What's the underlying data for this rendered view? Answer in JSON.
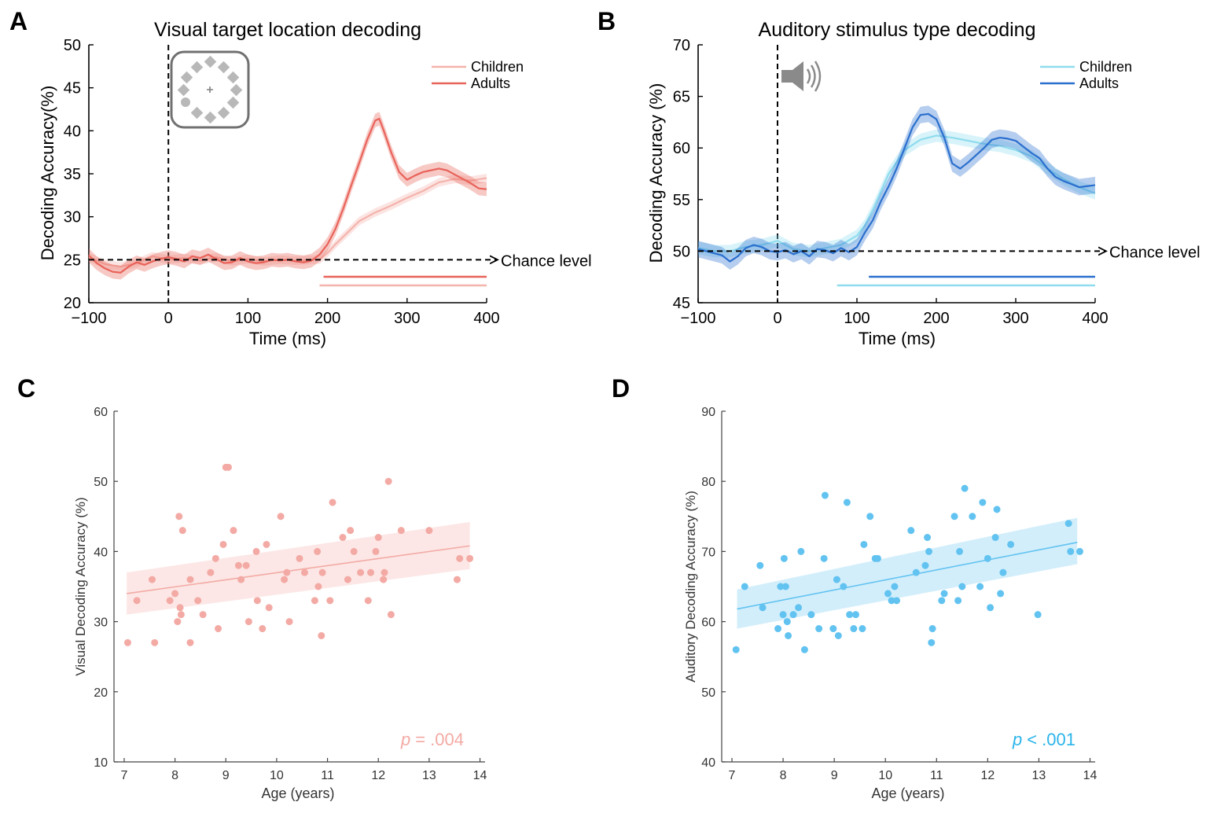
{
  "chart_data": [
    {
      "panel_label": "A",
      "type": "line",
      "title": "Visual target location decoding",
      "xlabel": "Time (ms)",
      "ylabel": "Decoding Accuracy(%)",
      "xlim": [
        -100,
        400
      ],
      "ylim": [
        20,
        50
      ],
      "xticks": [
        "−100",
        "0",
        "100",
        "200",
        "300",
        "400"
      ],
      "yticks": [
        "20",
        "25",
        "30",
        "35",
        "40",
        "45",
        "50"
      ],
      "chance_level": 25,
      "chance_label": "Chance level",
      "stimulus_icon": "visual-target-array-icon",
      "legend_position": "top-right",
      "series": [
        {
          "name": "Children",
          "color": "#f4b3ab",
          "x": [
            -100,
            -80,
            -60,
            -40,
            -20,
            0,
            20,
            40,
            60,
            80,
            100,
            120,
            140,
            160,
            180,
            190,
            200,
            210,
            220,
            230,
            240,
            260,
            280,
            300,
            320,
            340,
            360,
            380,
            400
          ],
          "values": [
            25.3,
            24.5,
            24.2,
            24.6,
            25.4,
            25.0,
            25.2,
            24.9,
            25.3,
            24.8,
            25.1,
            24.8,
            25.0,
            24.9,
            25.0,
            25.0,
            25.8,
            26.8,
            27.7,
            28.6,
            29.5,
            30.5,
            31.3,
            32.2,
            33.0,
            34.0,
            34.4,
            34.2,
            34.5
          ],
          "ci": 0.5,
          "significance_start": 190,
          "significance_end": 400
        },
        {
          "name": "Adults",
          "color": "#e8635a",
          "x": [
            -100,
            -90,
            -80,
            -70,
            -60,
            -50,
            -40,
            -30,
            -20,
            -10,
            0,
            10,
            20,
            30,
            40,
            50,
            60,
            70,
            80,
            90,
            100,
            110,
            120,
            130,
            140,
            150,
            160,
            170,
            180,
            190,
            200,
            210,
            220,
            230,
            240,
            250,
            260,
            265,
            270,
            280,
            290,
            300,
            310,
            320,
            330,
            340,
            350,
            360,
            370,
            380,
            390,
            400
          ],
          "values": [
            25.5,
            24.6,
            24.0,
            23.6,
            23.5,
            24.2,
            24.7,
            24.4,
            24.8,
            25.1,
            25.3,
            25.1,
            24.8,
            25.4,
            25.2,
            25.6,
            25.1,
            24.6,
            24.7,
            25.2,
            24.8,
            24.6,
            24.7,
            25.0,
            24.9,
            25.0,
            24.8,
            24.7,
            24.9,
            25.6,
            26.8,
            28.6,
            31.0,
            33.7,
            36.3,
            39.0,
            41.2,
            41.4,
            40.2,
            37.5,
            35.2,
            34.3,
            34.8,
            35.2,
            35.4,
            35.6,
            35.4,
            34.9,
            34.4,
            33.9,
            33.3,
            33.2
          ],
          "ci": 0.8,
          "significance_start": 195,
          "significance_end": 400
        }
      ]
    },
    {
      "panel_label": "B",
      "type": "line",
      "title": "Auditory stimulus type decoding",
      "xlabel": "Time (ms)",
      "ylabel": "Decoding Accuracy (%)",
      "xlim": [
        -100,
        400
      ],
      "ylim": [
        45,
        70
      ],
      "xticks": [
        "−100",
        "0",
        "100",
        "200",
        "300",
        "400"
      ],
      "yticks": [
        "45",
        "50",
        "55",
        "60",
        "65",
        "70"
      ],
      "chance_level": 50,
      "chance_label": "Chance level",
      "stimulus_icon": "speaker-icon",
      "legend_position": "top-right",
      "series": [
        {
          "name": "Children",
          "color": "#8fdcee",
          "x": [
            -100,
            -80,
            -60,
            -40,
            -20,
            0,
            20,
            40,
            60,
            80,
            100,
            110,
            120,
            140,
            160,
            180,
            200,
            220,
            240,
            260,
            280,
            300,
            320,
            340,
            360,
            380,
            400
          ],
          "values": [
            50.3,
            50.0,
            50.0,
            50.4,
            50.6,
            51.0,
            50.2,
            50.0,
            50.3,
            50.6,
            51.5,
            52.5,
            54.0,
            57.5,
            59.8,
            60.8,
            61.2,
            61.0,
            60.7,
            60.4,
            60.2,
            59.8,
            59.2,
            58.0,
            57.0,
            56.2,
            55.6
          ],
          "ci": 0.6,
          "significance_start": 75,
          "significance_end": 400
        },
        {
          "name": "Adults",
          "color": "#2a6fce",
          "x": [
            -100,
            -90,
            -80,
            -70,
            -60,
            -50,
            -40,
            -30,
            -20,
            -10,
            0,
            10,
            20,
            30,
            40,
            50,
            60,
            70,
            80,
            90,
            100,
            110,
            120,
            130,
            140,
            150,
            160,
            170,
            180,
            190,
            200,
            210,
            220,
            230,
            240,
            250,
            260,
            270,
            280,
            290,
            300,
            310,
            320,
            330,
            340,
            350,
            360,
            370,
            380,
            390,
            400
          ],
          "values": [
            50.2,
            50.0,
            49.8,
            49.6,
            49.0,
            49.5,
            50.3,
            50.6,
            50.4,
            50.0,
            49.9,
            50.1,
            49.7,
            50.0,
            49.5,
            50.2,
            50.1,
            49.8,
            50.3,
            49.9,
            50.4,
            51.8,
            53.0,
            54.8,
            56.3,
            58.0,
            60.0,
            62.0,
            63.2,
            63.3,
            62.8,
            61.0,
            58.5,
            58.0,
            58.6,
            59.3,
            60.0,
            60.8,
            61.0,
            60.9,
            60.7,
            60.1,
            59.5,
            59.0,
            58.0,
            57.2,
            56.8,
            56.5,
            56.2,
            56.3,
            56.4
          ],
          "ci": 0.8,
          "significance_start": 115,
          "significance_end": 400
        }
      ]
    },
    {
      "panel_label": "C",
      "type": "scatter",
      "title": "",
      "xlabel": "Age (years)",
      "ylabel": "Visual Decoding Accuracy (%)",
      "xlim": [
        6.8,
        14.1
      ],
      "ylim": [
        10,
        60
      ],
      "xticks": [
        "7",
        "8",
        "9",
        "10",
        "11",
        "12",
        "13",
        "14"
      ],
      "yticks": [
        "10",
        "20",
        "30",
        "40",
        "50",
        "60"
      ],
      "color": "#f3aaa4",
      "p_label": "p",
      "p_value": "= .004",
      "fit": {
        "x": [
          7.05,
          13.8
        ],
        "y": [
          34.0,
          40.8
        ],
        "ci_low": [
          31.0,
          37.5
        ],
        "ci_high": [
          37.0,
          44.2
        ]
      },
      "points": [
        [
          7.07,
          27
        ],
        [
          7.25,
          33
        ],
        [
          7.55,
          36
        ],
        [
          7.6,
          27
        ],
        [
          7.9,
          33
        ],
        [
          8.0,
          34
        ],
        [
          8.05,
          30
        ],
        [
          8.08,
          45
        ],
        [
          8.1,
          32
        ],
        [
          8.12,
          31
        ],
        [
          8.15,
          43
        ],
        [
          8.3,
          36
        ],
        [
          8.3,
          27
        ],
        [
          8.45,
          33
        ],
        [
          8.55,
          31
        ],
        [
          8.7,
          37
        ],
        [
          8.8,
          39
        ],
        [
          8.85,
          29
        ],
        [
          8.95,
          41
        ],
        [
          9.0,
          52
        ],
        [
          9.05,
          52
        ],
        [
          9.15,
          43
        ],
        [
          9.25,
          38
        ],
        [
          9.3,
          36
        ],
        [
          9.4,
          38
        ],
        [
          9.45,
          30
        ],
        [
          9.6,
          40
        ],
        [
          9.62,
          33
        ],
        [
          9.72,
          29
        ],
        [
          9.8,
          41
        ],
        [
          9.85,
          32
        ],
        [
          10.08,
          45
        ],
        [
          10.15,
          36
        ],
        [
          10.2,
          37
        ],
        [
          10.25,
          30
        ],
        [
          10.45,
          39
        ],
        [
          10.55,
          37
        ],
        [
          10.75,
          33
        ],
        [
          10.8,
          40
        ],
        [
          10.82,
          35
        ],
        [
          10.88,
          28
        ],
        [
          10.9,
          37
        ],
        [
          11.05,
          33
        ],
        [
          11.1,
          47
        ],
        [
          11.3,
          42
        ],
        [
          11.4,
          36
        ],
        [
          11.45,
          43
        ],
        [
          11.52,
          40
        ],
        [
          11.65,
          37
        ],
        [
          11.8,
          33
        ],
        [
          11.85,
          37
        ],
        [
          11.95,
          40
        ],
        [
          12.0,
          42
        ],
        [
          12.1,
          36
        ],
        [
          12.12,
          37
        ],
        [
          12.2,
          50
        ],
        [
          12.25,
          31
        ],
        [
          12.45,
          43
        ],
        [
          13.0,
          43
        ],
        [
          13.55,
          36
        ],
        [
          13.6,
          39
        ],
        [
          13.8,
          39
        ]
      ]
    },
    {
      "panel_label": "D",
      "type": "scatter",
      "title": "",
      "xlabel": "Age (years)",
      "ylabel": "Auditory Decoding Accuracy (%)",
      "xlim": [
        6.8,
        14.1
      ],
      "ylim": [
        40,
        90
      ],
      "xticks": [
        "7",
        "8",
        "9",
        "10",
        "11",
        "12",
        "13",
        "14"
      ],
      "yticks": [
        "40",
        "50",
        "60",
        "70",
        "80",
        "90"
      ],
      "color": "#62c3f1",
      "p_label": "p",
      "p_value": "< .001",
      "fit": {
        "x": [
          7.1,
          13.75
        ],
        "y": [
          61.8,
          71.3
        ],
        "ci_low": [
          59.0,
          68.2
        ],
        "ci_high": [
          64.6,
          74.8
        ]
      },
      "points": [
        [
          7.08,
          56
        ],
        [
          7.25,
          65
        ],
        [
          7.55,
          68
        ],
        [
          7.6,
          62
        ],
        [
          7.9,
          59
        ],
        [
          7.95,
          65
        ],
        [
          8.0,
          61
        ],
        [
          8.02,
          69
        ],
        [
          8.05,
          65
        ],
        [
          8.08,
          60
        ],
        [
          8.1,
          58
        ],
        [
          8.2,
          61
        ],
        [
          8.3,
          62
        ],
        [
          8.35,
          70
        ],
        [
          8.42,
          56
        ],
        [
          8.55,
          61
        ],
        [
          8.7,
          59
        ],
        [
          8.8,
          69
        ],
        [
          8.82,
          78
        ],
        [
          8.98,
          59
        ],
        [
          9.05,
          66
        ],
        [
          9.08,
          58
        ],
        [
          9.18,
          65
        ],
        [
          9.25,
          77
        ],
        [
          9.3,
          61
        ],
        [
          9.38,
          59
        ],
        [
          9.42,
          61
        ],
        [
          9.55,
          59
        ],
        [
          9.58,
          71
        ],
        [
          9.7,
          75
        ],
        [
          9.8,
          69
        ],
        [
          9.85,
          69
        ],
        [
          10.05,
          64
        ],
        [
          10.12,
          63
        ],
        [
          10.18,
          65
        ],
        [
          10.22,
          63
        ],
        [
          10.5,
          73
        ],
        [
          10.6,
          67
        ],
        [
          10.78,
          68
        ],
        [
          10.82,
          72
        ],
        [
          10.85,
          70
        ],
        [
          10.9,
          57
        ],
        [
          10.92,
          59
        ],
        [
          11.1,
          63
        ],
        [
          11.15,
          64
        ],
        [
          11.35,
          75
        ],
        [
          11.42,
          63
        ],
        [
          11.45,
          70
        ],
        [
          11.5,
          65
        ],
        [
          11.55,
          79
        ],
        [
          11.7,
          75
        ],
        [
          11.85,
          65
        ],
        [
          11.9,
          77
        ],
        [
          12.0,
          69
        ],
        [
          12.05,
          62
        ],
        [
          12.15,
          72
        ],
        [
          12.18,
          76
        ],
        [
          12.25,
          64
        ],
        [
          12.3,
          67
        ],
        [
          12.45,
          71
        ],
        [
          12.98,
          61
        ],
        [
          13.58,
          74
        ],
        [
          13.62,
          70
        ],
        [
          13.8,
          70
        ]
      ]
    }
  ]
}
